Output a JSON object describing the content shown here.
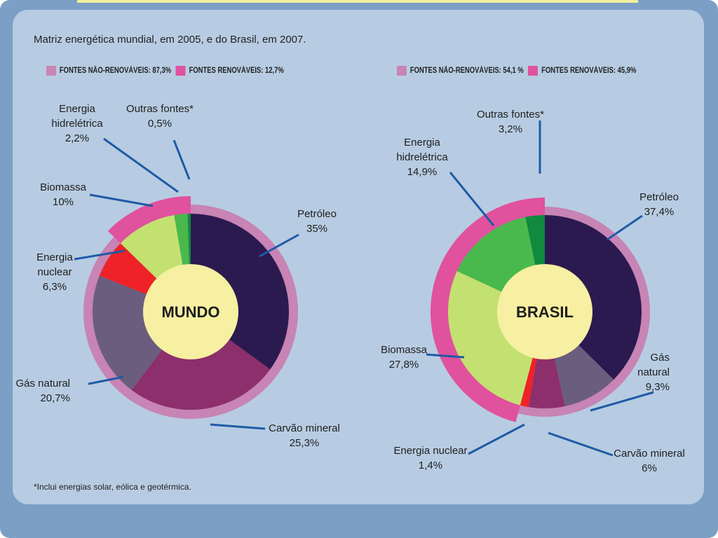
{
  "title": "Matriz energética mundial, em 2005, e do Brasil, em 2007.",
  "footnote": "*Inclui energias solar, eólica e geotérmica.",
  "colors": {
    "nonrenew_legend": "#c784b4",
    "renew_legend": "#e0519e",
    "petroleo": "#2b1a4f",
    "carvao": "#8c2f6c",
    "gas": "#6b5d7e",
    "nuclear": "#ee2227",
    "biomassa": "#c3e170",
    "hidro": "#49b94d",
    "outras": "#0f8a3e",
    "center": "#f7efa1"
  },
  "chart_data": [
    {
      "type": "pie",
      "center_label": "MUNDO",
      "legend": [
        {
          "text": "FONTES NÃO-RENOVÁVEIS: 87,3%",
          "value": 87.3
        },
        {
          "text": "FONTES RENOVÁVEIS: 12,7%",
          "value": 12.7
        }
      ],
      "slices": [
        {
          "key": "petroleo",
          "lines": [
            "Petróleo",
            "35%"
          ],
          "value": 35
        },
        {
          "key": "carvao",
          "lines": [
            "Carvão mineral",
            "25,3%"
          ],
          "value": 25.3
        },
        {
          "key": "gas",
          "lines": [
            "Gás natural",
            "20,7%"
          ],
          "value": 20.7
        },
        {
          "key": "nuclear",
          "lines": [
            "Energia",
            "nuclear",
            "6,3%"
          ],
          "value": 6.3
        },
        {
          "key": "biomassa",
          "lines": [
            "Biomassa",
            "10%"
          ],
          "value": 10
        },
        {
          "key": "hidro",
          "lines": [
            "Energia",
            "hidrelétrica",
            "2,2%"
          ],
          "value": 2.2
        },
        {
          "key": "outras",
          "lines": [
            "Outras fontes*",
            "0,5%"
          ],
          "value": 0.5
        }
      ]
    },
    {
      "type": "pie",
      "center_label": "BRASIL",
      "legend": [
        {
          "text": "FONTES NÃO-RENOVÁVEIS: 54,1 %",
          "value": 54.1
        },
        {
          "text": "FONTES RENOVÁVEIS: 45,9%",
          "value": 45.9
        }
      ],
      "slices": [
        {
          "key": "petroleo",
          "lines": [
            "Petróleo",
            "37,4%"
          ],
          "value": 37.4
        },
        {
          "key": "gas",
          "lines": [
            "Gás",
            "natural",
            "9,3%"
          ],
          "value": 9.3
        },
        {
          "key": "carvao",
          "lines": [
            "Carvão mineral",
            "6%"
          ],
          "value": 6
        },
        {
          "key": "nuclear",
          "lines": [
            "Energia nuclear",
            "1,4%"
          ],
          "value": 1.4
        },
        {
          "key": "biomassa",
          "lines": [
            "Biomassa",
            "27,8%"
          ],
          "value": 27.8
        },
        {
          "key": "hidro",
          "lines": [
            "Energia",
            "hidrelétrica",
            "14,9%"
          ],
          "value": 14.9
        },
        {
          "key": "outras",
          "lines": [
            "Outras fontes*",
            "3,2%"
          ],
          "value": 3.2
        }
      ]
    }
  ]
}
